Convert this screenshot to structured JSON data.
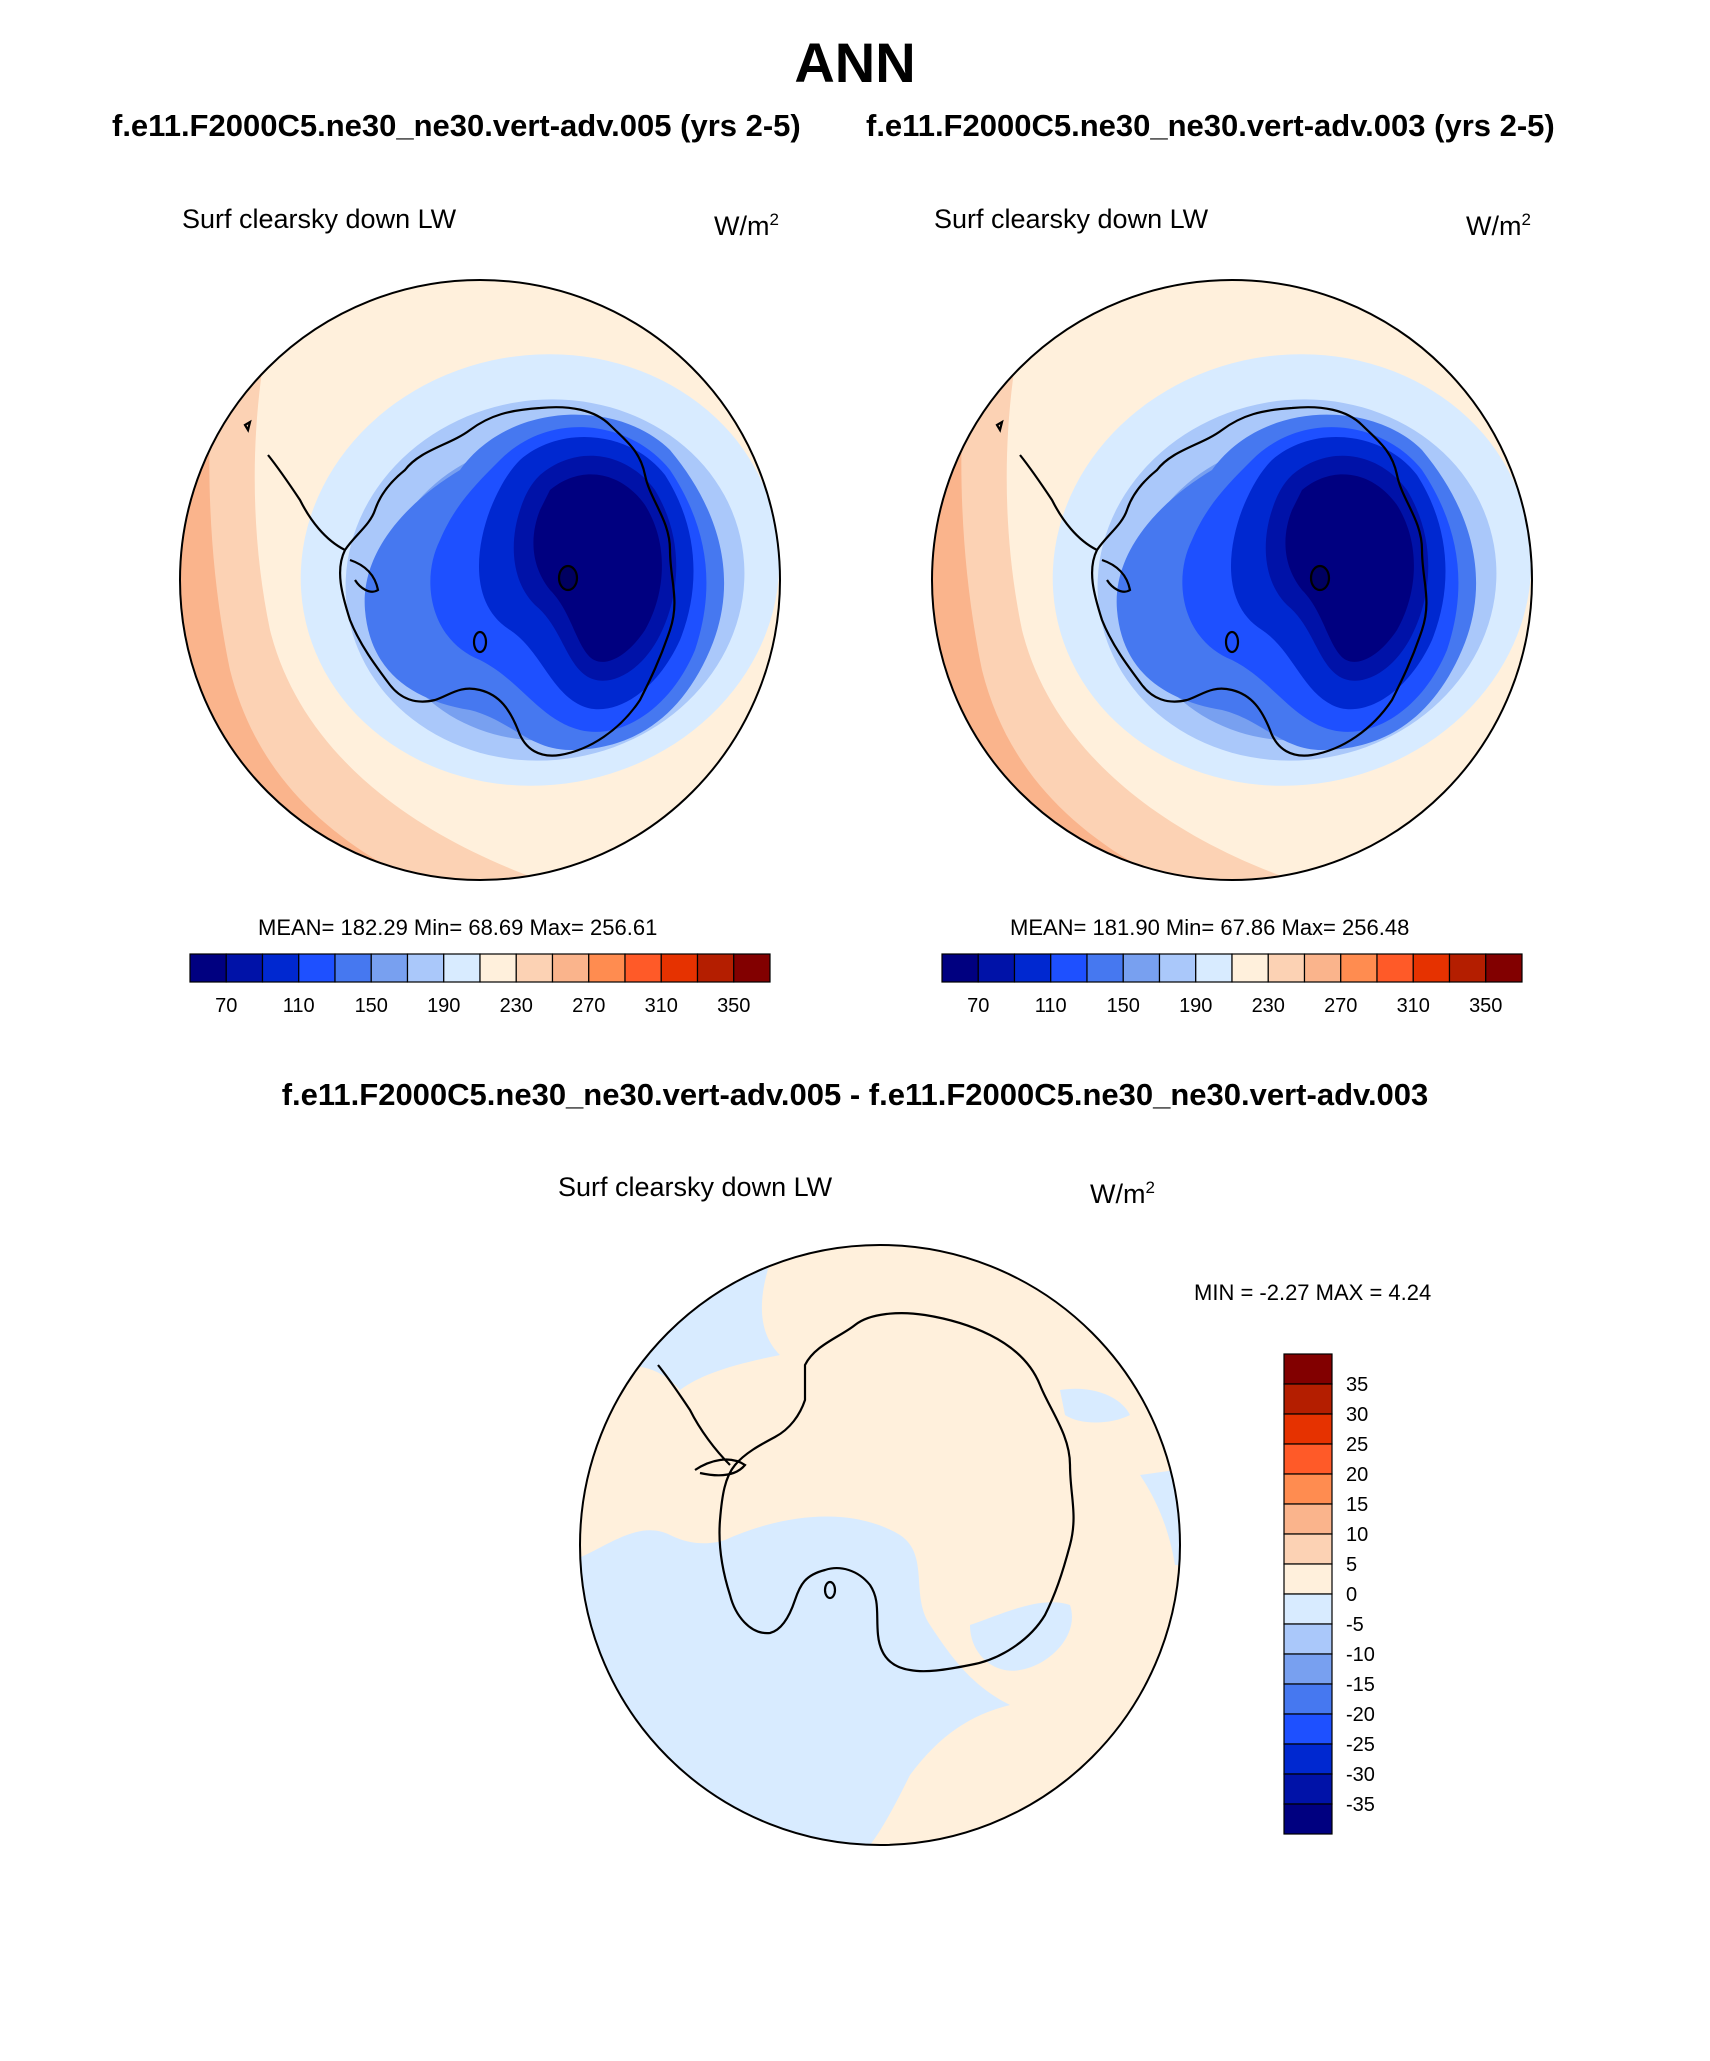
{
  "title": "ANN",
  "subtitles": [
    "f.e11.F2000C5.ne30_ne30.vert-adv.005 (yrs 2-5)",
    "f.e11.F2000C5.ne30_ne30.vert-adv.003 (yrs 2-5)"
  ],
  "diff_title": "f.e11.F2000C5.ne30_ne30.vert-adv.005 - f.e11.F2000C5.ne30_ne30.vert-adv.003",
  "panels": [
    {
      "label": "Surf clearsky down LW",
      "unit_base": "W/m",
      "unit_exp": "2",
      "stats": "MEAN= 182.29  Min=  68.69  Max= 256.61",
      "colorbar": {
        "colors": [
          "#000080",
          "#0012a8",
          "#0028d0",
          "#1e50ff",
          "#4678f0",
          "#78a0f0",
          "#aac8fa",
          "#d8ebff",
          "#fff0dc",
          "#fcd2b4",
          "#fab48c",
          "#ff8c50",
          "#ff5a28",
          "#e63200",
          "#b41e00",
          "#820000"
        ],
        "labels": [
          "70",
          "110",
          "150",
          "190",
          "230",
          "270",
          "310",
          "350"
        ]
      }
    },
    {
      "label": "Surf clearsky down LW",
      "unit_base": "W/m",
      "unit_exp": "2",
      "stats": "MEAN= 181.90  Min=  67.86  Max= 256.48",
      "colorbar": {
        "colors": [
          "#000080",
          "#0012a8",
          "#0028d0",
          "#1e50ff",
          "#4678f0",
          "#78a0f0",
          "#aac8fa",
          "#d8ebff",
          "#fff0dc",
          "#fcd2b4",
          "#fab48c",
          "#ff8c50",
          "#ff5a28",
          "#e63200",
          "#b41e00",
          "#820000"
        ],
        "labels": [
          "70",
          "110",
          "150",
          "190",
          "230",
          "270",
          "310",
          "350"
        ]
      }
    },
    {
      "label": "Surf clearsky down LW",
      "unit_base": "W/m",
      "unit_exp": "2",
      "stats": "MIN =  -2.27 MAX =   4.24",
      "colorbar": {
        "colors": [
          "#820000",
          "#b41e00",
          "#e63200",
          "#ff5a28",
          "#ff8c50",
          "#fab48c",
          "#fcd2b4",
          "#fff0dc",
          "#d8ebff",
          "#aac8fa",
          "#78a0f0",
          "#4678f0",
          "#1e50ff",
          "#0028d0",
          "#0012a8",
          "#000080"
        ],
        "labels": [
          "35",
          "30",
          "25",
          "20",
          "15",
          "10",
          "5",
          "0",
          "-5",
          "-10",
          "-15",
          "-20",
          "-25",
          "-30",
          "-35"
        ]
      }
    }
  ]
}
